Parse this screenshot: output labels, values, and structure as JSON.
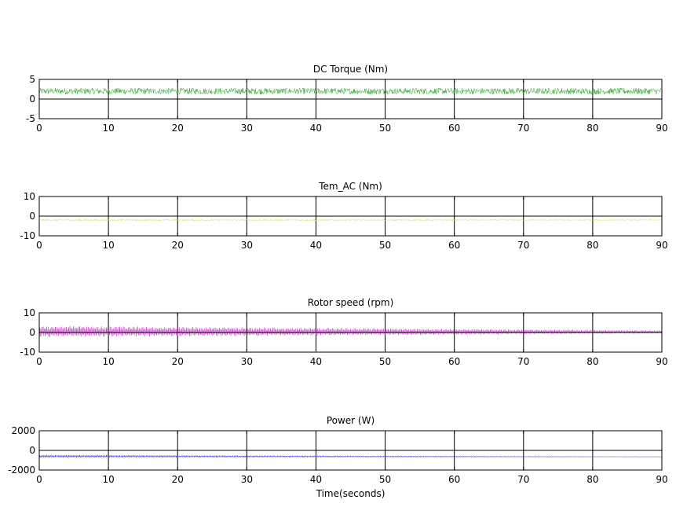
{
  "chart_data": [
    {
      "type": "line",
      "title": "DC Torque (Nm)",
      "xlabel": "",
      "ylabel": "",
      "xlim": [
        0,
        90
      ],
      "ylim": [
        -5,
        5
      ],
      "xticks": [
        0,
        10,
        20,
        30,
        40,
        50,
        60,
        70,
        80,
        90
      ],
      "yticks": [
        5,
        0,
        -5
      ],
      "grid": "vertical",
      "series": [
        {
          "color": "#2ca02c",
          "signal": {
            "shape": "noise",
            "center": [
              2,
              2
            ],
            "amplitude": [
              0.8,
              0.8
            ]
          }
        }
      ]
    },
    {
      "type": "line",
      "title": "Tem_AC (Nm)",
      "xlabel": "",
      "ylabel": "",
      "xlim": [
        0,
        90
      ],
      "ylim": [
        -10,
        10
      ],
      "xticks": [
        0,
        10,
        20,
        30,
        40,
        50,
        60,
        70,
        80,
        90
      ],
      "yticks": [
        10,
        0,
        -10
      ],
      "grid": "vertical",
      "series": [
        {
          "color": "#e6d84a",
          "signal": {
            "shape": "noise",
            "center": [
              -2,
              -2
            ],
            "amplitude": [
              0.5,
              0.3
            ]
          }
        }
      ]
    },
    {
      "type": "line",
      "title": "Rotor speed (rpm)",
      "xlabel": "",
      "ylabel": "",
      "xlim": [
        0,
        90
      ],
      "ylim": [
        -10,
        10
      ],
      "xticks": [
        0,
        10,
        20,
        30,
        40,
        50,
        60,
        70,
        80,
        90
      ],
      "yticks": [
        10,
        0,
        -10
      ],
      "grid": "vertical",
      "series": [
        {
          "color": "#cc33cc",
          "signal": {
            "shape": "oscillation",
            "center": [
              0.5,
              0.3
            ],
            "amplitude": [
              3,
              0.8
            ]
          }
        }
      ]
    },
    {
      "type": "line",
      "title": "Power (W)",
      "xlabel": "Time(seconds)",
      "ylabel": "",
      "xlim": [
        0,
        90
      ],
      "ylim": [
        -2000,
        2000
      ],
      "xticks": [
        0,
        10,
        20,
        30,
        40,
        50,
        60,
        70,
        80,
        90
      ],
      "yticks": [
        2000,
        0,
        -2000
      ],
      "grid": "vertical",
      "series": [
        {
          "color": "#3333cc",
          "signal": {
            "shape": "oscillation",
            "center": [
              -600,
              -650
            ],
            "amplitude": [
              150,
              30
            ]
          }
        }
      ]
    }
  ]
}
